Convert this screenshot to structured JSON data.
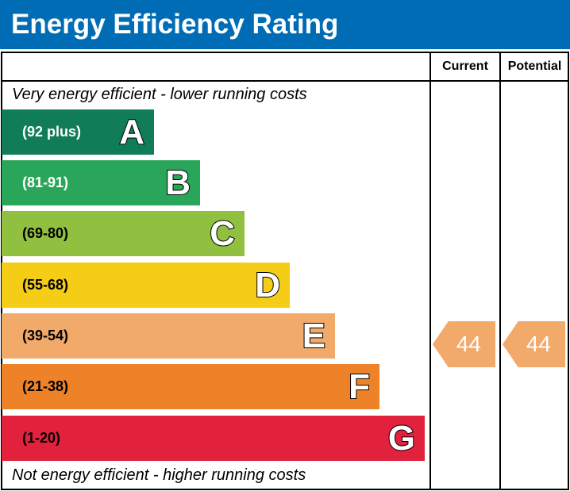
{
  "title": "Energy Efficiency Rating",
  "columns": {
    "current": "Current",
    "potential": "Potential"
  },
  "top_note": "Very energy efficient - lower running costs",
  "bottom_note": "Not energy efficient - higher running costs",
  "chart_data": {
    "type": "bar",
    "bands": [
      {
        "letter": "A",
        "range": "(92 plus)",
        "color": "#117d58",
        "label_color": "#ffffff"
      },
      {
        "letter": "B",
        "range": "(81-91)",
        "color": "#2aa65a",
        "label_color": "#ffffff"
      },
      {
        "letter": "C",
        "range": "(69-80)",
        "color": "#91bf40",
        "label_color": "#000000"
      },
      {
        "letter": "D",
        "range": "(55-68)",
        "color": "#f5cd17",
        "label_color": "#000000"
      },
      {
        "letter": "E",
        "range": "(39-54)",
        "color": "#f2aa6b",
        "label_color": "#000000"
      },
      {
        "letter": "F",
        "range": "(21-38)",
        "color": "#ee8229",
        "label_color": "#000000"
      },
      {
        "letter": "G",
        "range": "(1-20)",
        "color": "#e2213c",
        "label_color": "#000000"
      }
    ],
    "current": {
      "value": "44",
      "band": "E",
      "color": "#f2aa6b"
    },
    "potential": {
      "value": "44",
      "band": "E",
      "color": "#f2aa6b"
    }
  }
}
